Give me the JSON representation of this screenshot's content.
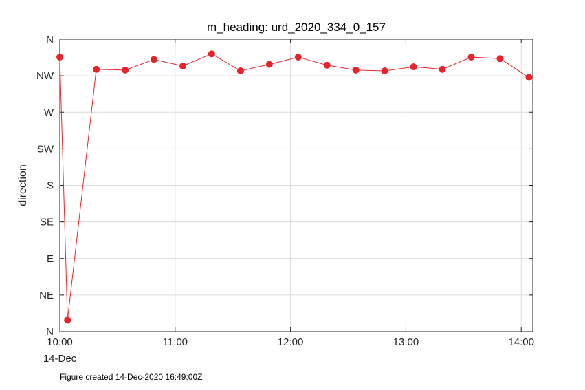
{
  "caption": "Figure created 14-Dec-2020 16:49:00Z",
  "chart_data": {
    "type": "line",
    "title": "m_heading: urd_2020_334_0_157",
    "xlabel": "",
    "ylabel": "direction",
    "x_tick_labels": [
      "10:00",
      "11:00",
      "12:00",
      "13:00",
      "14:00"
    ],
    "x_date_label": "14-Dec",
    "y_ticks": [
      0,
      45,
      90,
      135,
      180,
      225,
      270,
      315,
      360
    ],
    "y_tick_labels": [
      "N",
      "NE",
      "E",
      "SE",
      "S",
      "SW",
      "W",
      "NW",
      "N"
    ],
    "xlim": [
      "10:00",
      "14:06"
    ],
    "ylim": [
      0,
      360
    ],
    "grid": true,
    "color": "#e8242b",
    "series": [
      {
        "x": [
          "10:00",
          "10:04",
          "10:19",
          "10:34",
          "10:49",
          "11:04",
          "11:19",
          "11:34",
          "11:49",
          "12:04",
          "12:19",
          "12:34",
          "12:49",
          "13:04",
          "13:19",
          "13:34",
          "13:49",
          "14:04"
        ],
        "values": [
          338,
          14,
          323,
          322,
          335,
          327,
          342,
          321,
          329,
          338,
          328,
          322,
          321,
          326,
          323,
          338,
          336,
          313
        ]
      }
    ]
  }
}
